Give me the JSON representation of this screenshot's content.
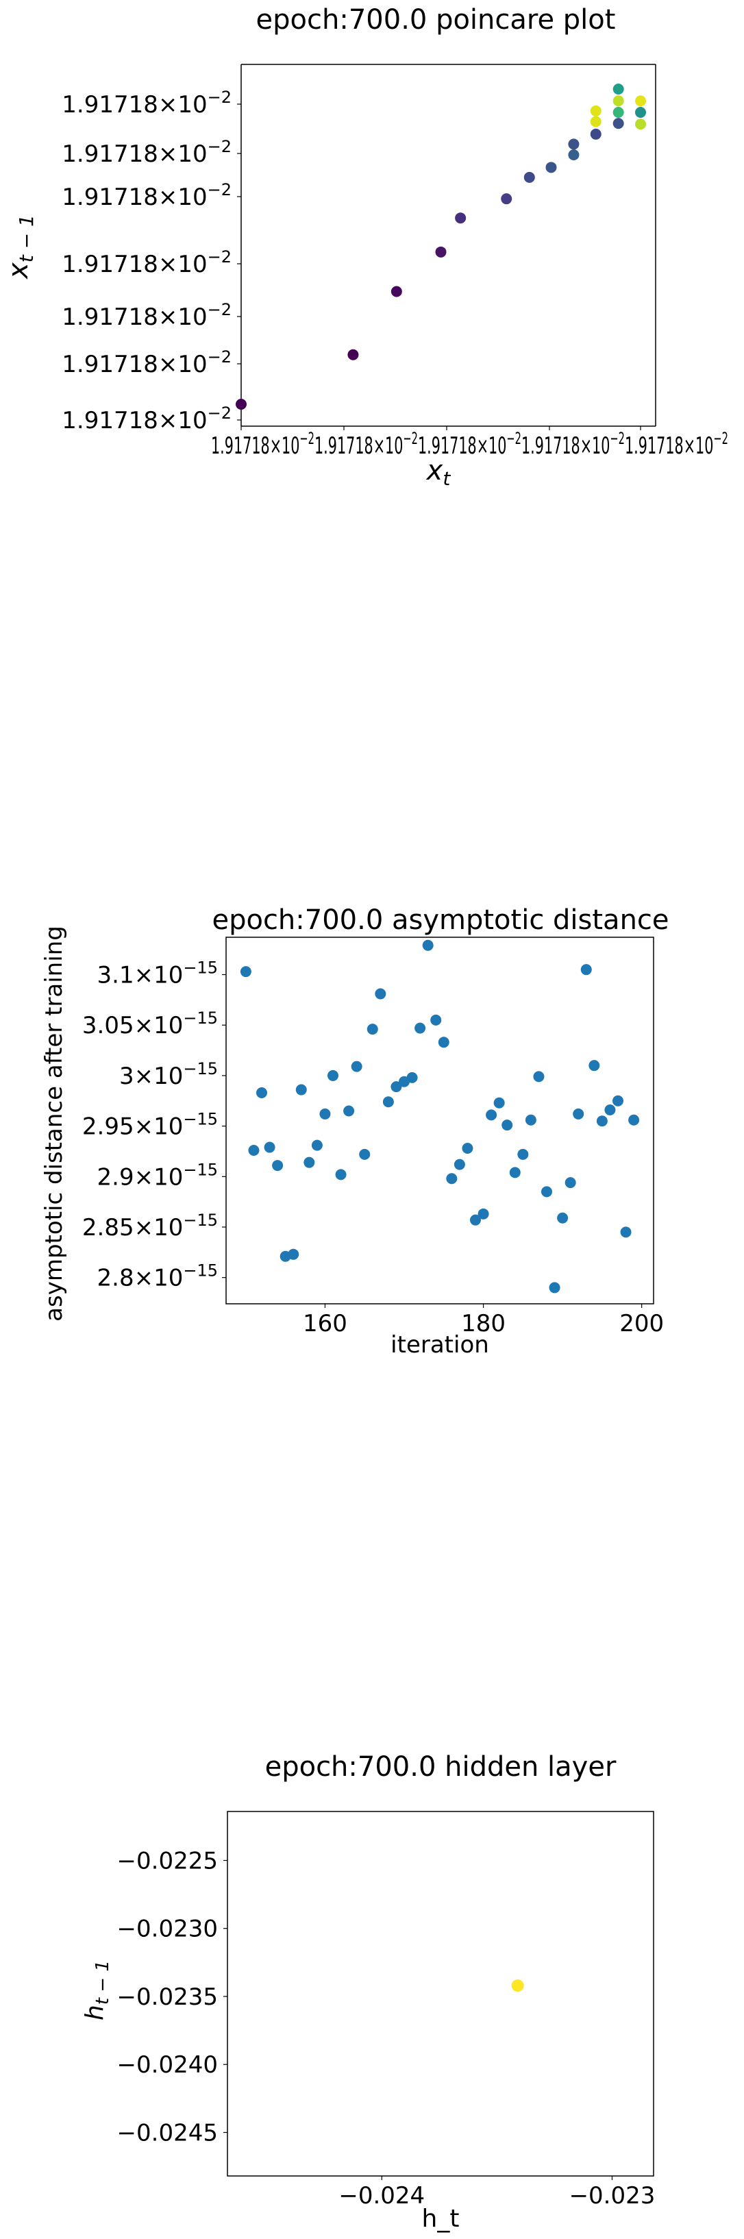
{
  "chart_data": [
    {
      "type": "scatter",
      "title": "epoch:700.0 poincare plot",
      "xlabel": "x_t",
      "ylabel": "x_{t-1}",
      "colormap": "viridis",
      "x_tick_label": "1.91718×10⁻²",
      "y_tick_labels": [
        "1.91718×10⁻²",
        "1.91718×10⁻²",
        "1.91718×10⁻²",
        "1.91718×10⁻²",
        "1.91718×10⁻²",
        "1.91718×10⁻²",
        "1.91718×10⁻²"
      ],
      "x_tick_labels_display": [
        "1.91718",
        "×10⁻²1.91718",
        "×10⁻²1.91718",
        "×10⁻²1.91718",
        "×10⁻²1.91718",
        "×10⁻²"
      ],
      "x_tick_suffix": "×10",
      "x_tick_exp": "−2",
      "y_mantissa": "1.91718",
      "y_times": "×10",
      "y_exp": "−2",
      "points": [
        {
          "x": 0.0,
          "y": 0.0,
          "c": "#440154"
        },
        {
          "x": 0.268,
          "y": 0.134,
          "c": "#440154"
        },
        {
          "x": 0.372,
          "y": 0.305,
          "c": "#46085c"
        },
        {
          "x": 0.478,
          "y": 0.412,
          "c": "#471365"
        },
        {
          "x": 0.525,
          "y": 0.504,
          "c": "#472f7d"
        },
        {
          "x": 0.635,
          "y": 0.556,
          "c": "#433e85"
        },
        {
          "x": 0.69,
          "y": 0.614,
          "c": "#3e4a89"
        },
        {
          "x": 0.742,
          "y": 0.641,
          "c": "#3a548c"
        },
        {
          "x": 0.796,
          "y": 0.675,
          "c": "#355f8d"
        },
        {
          "x": 0.796,
          "y": 0.704,
          "c": "#3b528b"
        },
        {
          "x": 0.849,
          "y": 0.731,
          "c": "#3e4989"
        },
        {
          "x": 0.849,
          "y": 0.765,
          "c": "#dde318"
        },
        {
          "x": 0.849,
          "y": 0.794,
          "c": "#dfe318"
        },
        {
          "x": 0.903,
          "y": 0.76,
          "c": "#3b528b"
        },
        {
          "x": 0.903,
          "y": 0.79,
          "c": "#35b779"
        },
        {
          "x": 0.903,
          "y": 0.821,
          "c": "#bddf26"
        },
        {
          "x": 0.903,
          "y": 0.853,
          "c": "#1f9e89"
        },
        {
          "x": 0.956,
          "y": 0.758,
          "c": "#b8de29"
        },
        {
          "x": 0.956,
          "y": 0.79,
          "c": "#21918c"
        },
        {
          "x": 0.956,
          "y": 0.821,
          "c": "#e5e419"
        }
      ]
    },
    {
      "type": "scatter",
      "title": "epoch:700.0 asymptotic distance",
      "xlabel": "iteration",
      "ylabel": "asymptotic distance after training",
      "xlim": [
        147.5,
        201.5
      ],
      "ylim": [
        2.774e-15,
        3.137e-15
      ],
      "x_ticks": [
        160,
        180,
        200
      ],
      "y_tick_mantissas": [
        "2.8",
        "2.85",
        "2.9",
        "2.95",
        "3",
        "3.05",
        "3.1"
      ],
      "y_tick_values": [
        2.8e-15,
        2.85e-15,
        2.9e-15,
        2.95e-15,
        3e-15,
        3.05e-15,
        3.1e-15
      ],
      "y_times": "×10",
      "y_exp": "−15",
      "color": "#1f77b4",
      "x": [
        150,
        151,
        152,
        153,
        154,
        155,
        156,
        157,
        158,
        159,
        160,
        161,
        162,
        163,
        164,
        165,
        166,
        167,
        168,
        169,
        170,
        171,
        172,
        173,
        174,
        175,
        176,
        177,
        178,
        179,
        180,
        181,
        182,
        183,
        184,
        185,
        186,
        187,
        188,
        189,
        190,
        191,
        192,
        193,
        194,
        195,
        196,
        197,
        198,
        199
      ],
      "y": [
        3.103e-15,
        2.926e-15,
        2.983e-15,
        2.929e-15,
        2.911e-15,
        2.821e-15,
        2.823e-15,
        2.986e-15,
        2.914e-15,
        2.931e-15,
        2.962e-15,
        3e-15,
        2.902e-15,
        2.965e-15,
        3.009e-15,
        2.922e-15,
        3.046e-15,
        3.081e-15,
        2.974e-15,
        2.989e-15,
        2.994e-15,
        2.998e-15,
        3.047e-15,
        3.129e-15,
        3.055e-15,
        3.033e-15,
        2.898e-15,
        2.912e-15,
        2.928e-15,
        2.857e-15,
        2.863e-15,
        2.961e-15,
        2.973e-15,
        2.951e-15,
        2.904e-15,
        2.922e-15,
        2.956e-15,
        2.999e-15,
        2.885e-15,
        2.79e-15,
        2.859e-15,
        2.894e-15,
        2.962e-15,
        3.105e-15,
        3.01e-15,
        2.955e-15,
        2.966e-15,
        2.975e-15,
        2.845e-15,
        2.956e-15
      ]
    },
    {
      "type": "scatter",
      "title": "epoch:700.0 hidden layer",
      "xlabel": "h_t",
      "ylabel": "h_{t-1}",
      "xlim": [
        -0.02467,
        -0.02282
      ],
      "ylim": [
        -0.02482,
        -0.02214
      ],
      "x_ticks": [
        -0.024,
        -0.023
      ],
      "x_tick_labels": [
        "−0.024",
        "−0.023"
      ],
      "y_ticks": [
        -0.0225,
        -0.023,
        -0.0235,
        -0.024,
        -0.0245
      ],
      "y_tick_labels": [
        "−0.0225",
        "−0.0230",
        "−0.0235",
        "−0.0240",
        "−0.0245"
      ],
      "color": "#fde725",
      "points": [
        {
          "x": -0.02341,
          "y": -0.02342
        }
      ]
    }
  ]
}
